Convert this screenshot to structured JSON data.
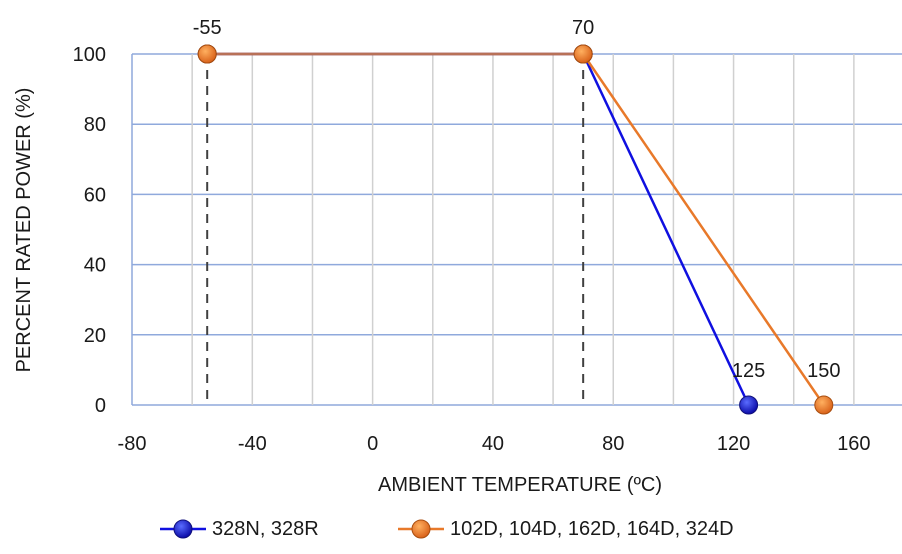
{
  "chart_data": {
    "type": "line",
    "title": "",
    "xlabel": "AMBIENT TEMPERATURE (ºC)",
    "ylabel": "PERCENT RATED POWER (%)",
    "xlim": [
      -80,
      176
    ],
    "ylim": [
      0,
      100
    ],
    "x_ticks": [
      -80,
      -40,
      0,
      40,
      80,
      120,
      160
    ],
    "y_ticks": [
      0,
      20,
      40,
      60,
      80,
      100
    ],
    "grid": true,
    "legend_position": "bottom",
    "series": [
      {
        "name": "328N, 328R",
        "color": "#1010e0",
        "marker_color": "#1a1ad8",
        "points": [
          [
            -55,
            100
          ],
          [
            70,
            100
          ],
          [
            125,
            0
          ]
        ]
      },
      {
        "name": "102D, 104D, 162D, 164D, 324D",
        "color": "#e8792a",
        "marker_color": "#ee7d22",
        "points": [
          [
            -55,
            100
          ],
          [
            70,
            100
          ],
          [
            150,
            0
          ]
        ]
      }
    ],
    "reference_lines": [
      {
        "x": -55,
        "style": "dashed",
        "color": "#404040"
      },
      {
        "x": 70,
        "style": "dashed",
        "color": "#404040"
      }
    ],
    "annotations": [
      {
        "text": "-55",
        "x": -55,
        "y": 100
      },
      {
        "text": "70",
        "x": 70,
        "y": 100
      },
      {
        "text": "125",
        "x": 125,
        "y": 0
      },
      {
        "text": "150",
        "x": 150,
        "y": 0
      }
    ]
  }
}
